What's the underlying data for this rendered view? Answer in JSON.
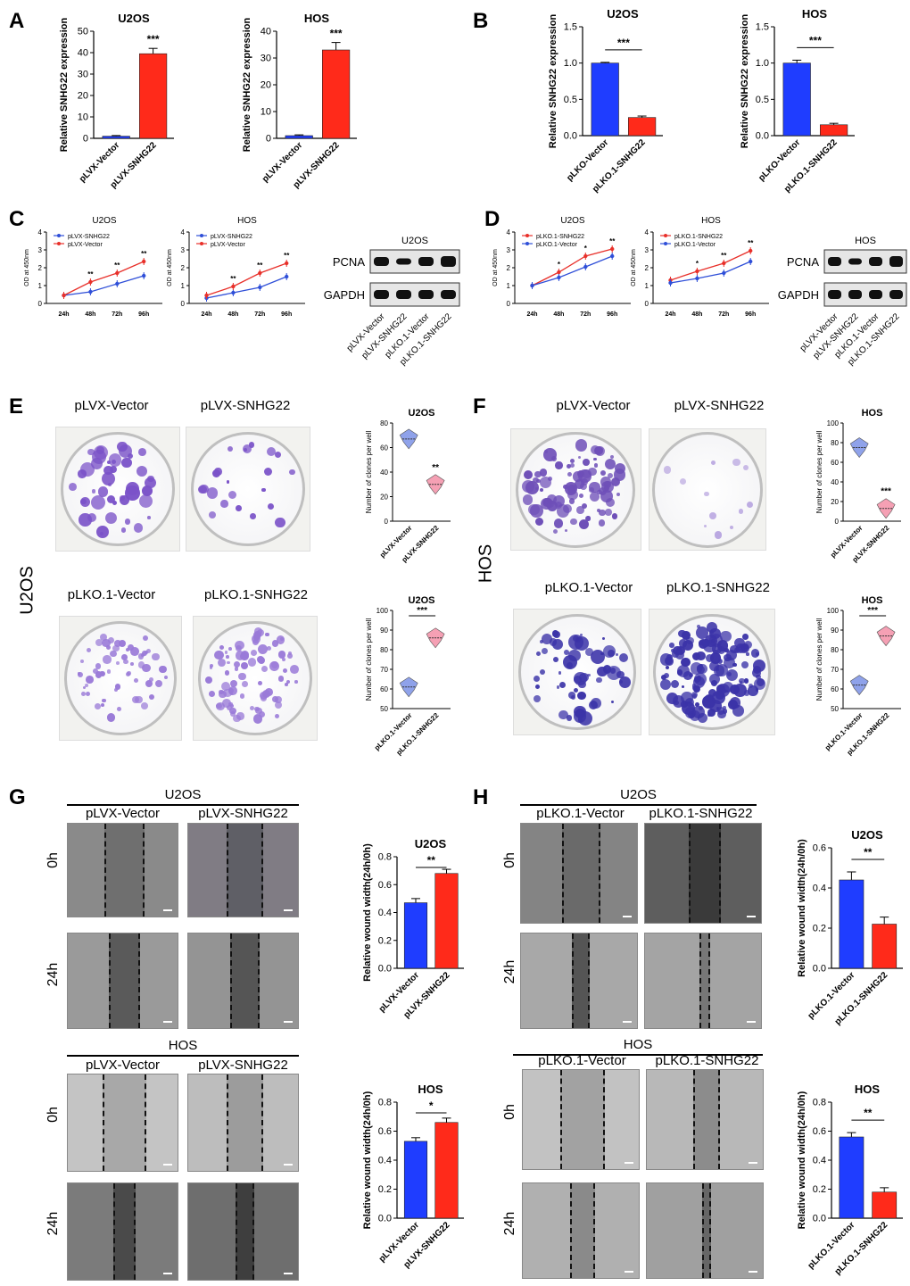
{
  "panels": {
    "A": {
      "letter": "A",
      "charts": [
        {
          "title": "U2OS",
          "ylabel": "Relative SNHG22 expression",
          "categories": [
            "pLVX-Vector",
            "pLVX-SNHG22"
          ],
          "values": [
            1,
            39.5
          ],
          "errors": [
            0.3,
            2.5
          ],
          "yticks": [
            "0",
            "10",
            "20",
            "30",
            "40",
            "50"
          ],
          "ymax": 50,
          "sig": "***"
        },
        {
          "title": "HOS",
          "ylabel": "Relative SNHG22 expression",
          "categories": [
            "pLVX-Vector",
            "pLVX-SNHG22"
          ],
          "values": [
            1,
            33
          ],
          "errors": [
            0.3,
            2.8
          ],
          "yticks": [
            "0",
            "10",
            "20",
            "30",
            "40"
          ],
          "ymax": 40,
          "sig": "***"
        }
      ]
    },
    "B": {
      "letter": "B",
      "charts": [
        {
          "title": "U2OS",
          "ylabel": "Relative SNHG22 expression",
          "categories": [
            "pLKO-Vector",
            "pLKO.1-SNHG22"
          ],
          "values": [
            1.0,
            0.25
          ],
          "errors": [
            0.01,
            0.02
          ],
          "yticks": [
            "0.0",
            "0.5",
            "1.0",
            "1.5"
          ],
          "ymax": 1.5,
          "sig": "***"
        },
        {
          "title": "HOS",
          "ylabel": "Relative SNHG22 expression",
          "categories": [
            "pLKO-Vector",
            "pLKO.1-SNHG22"
          ],
          "values": [
            1.0,
            0.15
          ],
          "errors": [
            0.04,
            0.02
          ],
          "yticks": [
            "0.0",
            "0.5",
            "1.0",
            "1.5"
          ],
          "ymax": 1.5,
          "sig": "***"
        }
      ]
    },
    "C": {
      "letter": "C",
      "lines": [
        {
          "title": "U2OS",
          "ylabel": "OD at 450nm",
          "x": [
            "24h",
            "48h",
            "72h",
            "96h"
          ],
          "yticks": [
            "0",
            "1",
            "2",
            "3",
            "4"
          ],
          "ymax": 4,
          "series": [
            {
              "name": "pLVX-SNHG22",
              "values": [
                0.45,
                0.65,
                1.1,
                1.55
              ],
              "color": "#2f4fd8"
            },
            {
              "name": "pLVX-Vector",
              "values": [
                0.45,
                1.2,
                1.7,
                2.35
              ],
              "color": "#e8302a"
            }
          ],
          "sig": [
            "",
            "**",
            "**",
            "**"
          ]
        },
        {
          "title": "HOS",
          "ylabel": "OD at 450nm",
          "x": [
            "24h",
            "48h",
            "72h",
            "96h"
          ],
          "yticks": [
            "0",
            "1",
            "2",
            "3",
            "4"
          ],
          "ymax": 4,
          "series": [
            {
              "name": "pLVX-SNHG22",
              "values": [
                0.3,
                0.6,
                0.9,
                1.5
              ],
              "color": "#2f4fd8"
            },
            {
              "name": "pLVX-Vector",
              "values": [
                0.45,
                0.95,
                1.7,
                2.25
              ],
              "color": "#e8302a"
            }
          ],
          "sig": [
            "",
            "**",
            "**",
            "**"
          ]
        }
      ],
      "blot": {
        "title": "U2OS",
        "rows": [
          "PCNA",
          "GAPDH"
        ],
        "lanes": [
          "pLVX-Vector",
          "pLVX-SNHG22",
          "pLKO.1-Vector",
          "pLKO.1-SNHG22"
        ]
      }
    },
    "D": {
      "letter": "D",
      "lines": [
        {
          "title": "U2OS",
          "ylabel": "OD at 450nm",
          "x": [
            "24h",
            "48h",
            "72h",
            "96h"
          ],
          "yticks": [
            "0",
            "1",
            "2",
            "3",
            "4"
          ],
          "ymax": 4,
          "series": [
            {
              "name": "pLKO.1-SNHG22",
              "values": [
                1.0,
                1.75,
                2.65,
                3.05
              ],
              "color": "#e8302a"
            },
            {
              "name": "pLKO.1-Vector",
              "values": [
                1.0,
                1.45,
                2.05,
                2.65
              ],
              "color": "#2f4fd8"
            }
          ],
          "sig": [
            "",
            "*",
            "*",
            "**"
          ]
        },
        {
          "title": "HOS",
          "ylabel": "OD at 450nm",
          "x": [
            "24h",
            "48h",
            "72h",
            "96h"
          ],
          "yticks": [
            "0",
            "1",
            "2",
            "3",
            "4"
          ],
          "ymax": 4,
          "series": [
            {
              "name": "pLKO.1-SNHG22",
              "values": [
                1.3,
                1.8,
                2.25,
                2.95
              ],
              "color": "#e8302a"
            },
            {
              "name": "pLKO.1-Vector",
              "values": [
                1.15,
                1.4,
                1.7,
                2.35
              ],
              "color": "#2f4fd8"
            }
          ],
          "sig": [
            "",
            "*",
            "**",
            "**"
          ]
        }
      ],
      "blot": {
        "title": "HOS",
        "rows": [
          "PCNA",
          "GAPDH"
        ],
        "lanes": [
          "pLVX-Vector",
          "pLVX-SNHG22",
          "pLKO.1-Vector",
          "pLKO.1-SNHG22"
        ]
      }
    },
    "E": {
      "letter": "E",
      "side_label": "U2OS",
      "row1": {
        "labels": [
          "pLVX-Vector",
          "pLVX-SNHG22"
        ]
      },
      "row2": {
        "labels": [
          "pLKO.1-Vector",
          "pLKO.1-SNHG22"
        ]
      },
      "violin1": {
        "title": "U2OS",
        "ylabel": "Number of clones per well",
        "categories": [
          "pLVX-Vector",
          "pLVX-SNHG22"
        ],
        "medians": [
          67,
          30
        ],
        "yticks": [
          "0",
          "20",
          "40",
          "60",
          "80"
        ],
        "ymin": 0,
        "ymax": 80,
        "sig": "**",
        "bar": false
      },
      "violin2": {
        "title": "U2OS",
        "ylabel": "Number of clones per well",
        "categories": [
          "pLKO.1-Vector",
          "pLKO.1-SNHG22"
        ],
        "medians": [
          61,
          86
        ],
        "yticks": [
          "50",
          "60",
          "70",
          "80",
          "90",
          "100"
        ],
        "ymin": 50,
        "ymax": 100,
        "sig": "***",
        "bar": true
      }
    },
    "F": {
      "letter": "F",
      "side_label": "HOS",
      "row1": {
        "labels": [
          "pLVX-Vector",
          "pLVX-SNHG22"
        ]
      },
      "row2": {
        "labels": [
          "pLKO.1-Vector",
          "pLKO.1-SNHG22"
        ]
      },
      "violin1": {
        "title": "HOS",
        "ylabel": "Number of clones per well",
        "categories": [
          "pLVX-Vector",
          "pLVX-SNHG22"
        ],
        "medians": [
          75,
          13
        ],
        "yticks": [
          "0",
          "20",
          "40",
          "60",
          "80",
          "100"
        ],
        "ymin": 0,
        "ymax": 100,
        "sig": "***",
        "bar": false
      },
      "violin2": {
        "title": "HOS",
        "ylabel": "Number of clones per well",
        "categories": [
          "pLKO.1-Vector",
          "pLKO.1-SNHG22"
        ],
        "medians": [
          62,
          87
        ],
        "yticks": [
          "50",
          "60",
          "70",
          "80",
          "90",
          "100"
        ],
        "ymin": 50,
        "ymax": 100,
        "sig": "***",
        "bar": true
      }
    },
    "G": {
      "letter": "G",
      "top": {
        "cell": "U2OS",
        "labels": [
          "pLVX-Vector",
          "pLVX-SNHG22"
        ],
        "times": [
          "0h",
          "24h"
        ]
      },
      "bottom": {
        "cell": "HOS",
        "labels": [
          "pLVX-Vector",
          "pLVX-SNHG22"
        ],
        "times": [
          "0h",
          "24h"
        ]
      },
      "bar1": {
        "title": "U2OS",
        "ylabel": "Relative wound width(24h/0h)",
        "categories": [
          "pLVX-Vector",
          "pLVX-SNHG22"
        ],
        "values": [
          0.47,
          0.68
        ],
        "errors": [
          0.03,
          0.03
        ],
        "yticks": [
          "0.0",
          "0.2",
          "0.4",
          "0.6",
          "0.8"
        ],
        "ymax": 0.8,
        "sig": "**"
      },
      "bar2": {
        "title": "HOS",
        "ylabel": "Relative wound width(24h/0h)",
        "categories": [
          "pLVX-Vector",
          "pLVX-SNHG22"
        ],
        "values": [
          0.53,
          0.66
        ],
        "errors": [
          0.025,
          0.03
        ],
        "yticks": [
          "0.0",
          "0.2",
          "0.4",
          "0.6",
          "0.8"
        ],
        "ymax": 0.8,
        "sig": "*"
      }
    },
    "H": {
      "letter": "H",
      "top": {
        "cell": "U2OS",
        "labels": [
          "pLKO.1-Vector",
          "pLKO.1-SNHG22"
        ],
        "times": [
          "0h",
          "24h"
        ]
      },
      "bottom": {
        "cell": "HOS",
        "labels": [
          "pLKO.1-Vector",
          "pLKO.1-SNHG22"
        ],
        "times": [
          "0h",
          "24h"
        ]
      },
      "bar1": {
        "title": "U2OS",
        "ylabel": "Relative wound width(24h/0h)",
        "categories": [
          "pLKO.1-Vector",
          "pLKO.1-SNHG22"
        ],
        "values": [
          0.44,
          0.22
        ],
        "errors": [
          0.04,
          0.035
        ],
        "yticks": [
          "0.0",
          "0.2",
          "0.4",
          "0.6"
        ],
        "ymax": 0.6,
        "sig": "**"
      },
      "bar2": {
        "title": "HOS",
        "ylabel": "Relative wound width(24h/0h)",
        "categories": [
          "pLKO.1-Vector",
          "pLKO.1-SNHG22"
        ],
        "values": [
          0.56,
          0.18
        ],
        "errors": [
          0.03,
          0.03
        ],
        "yticks": [
          "0.0",
          "0.2",
          "0.4",
          "0.6",
          "0.8"
        ],
        "ymax": 0.8,
        "sig": "**"
      }
    }
  },
  "colors": {
    "blue": "#1f3dff",
    "red": "#ff2a1a",
    "violet_blue": "#8fa2ea",
    "violet_pink": "#f5a0b4",
    "colony": "#7a52c8"
  },
  "chart_data": [
    {
      "type": "bar",
      "title": "U2OS",
      "ylabel": "Relative SNHG22 expression",
      "categories": [
        "pLVX-Vector",
        "pLVX-SNHG22"
      ],
      "values": [
        1,
        39.5
      ],
      "ylim": [
        0,
        50
      ]
    },
    {
      "type": "bar",
      "title": "HOS",
      "ylabel": "Relative SNHG22 expression",
      "categories": [
        "pLVX-Vector",
        "pLVX-SNHG22"
      ],
      "values": [
        1,
        33
      ],
      "ylim": [
        0,
        40
      ]
    },
    {
      "type": "bar",
      "title": "U2OS",
      "ylabel": "Relative SNHG22 expression",
      "categories": [
        "pLKO-Vector",
        "pLKO.1-SNHG22"
      ],
      "values": [
        1.0,
        0.25
      ],
      "ylim": [
        0,
        1.5
      ]
    },
    {
      "type": "bar",
      "title": "HOS",
      "ylabel": "Relative SNHG22 expression",
      "categories": [
        "pLKO-Vector",
        "pLKO.1-SNHG22"
      ],
      "values": [
        1.0,
        0.15
      ],
      "ylim": [
        0,
        1.5
      ]
    },
    {
      "type": "line",
      "title": "U2OS",
      "ylabel": "OD at 450nm",
      "x": [
        "24h",
        "48h",
        "72h",
        "96h"
      ],
      "series": [
        {
          "name": "pLVX-SNHG22",
          "values": [
            0.45,
            0.65,
            1.1,
            1.55
          ]
        },
        {
          "name": "pLVX-Vector",
          "values": [
            0.45,
            1.2,
            1.7,
            2.35
          ]
        }
      ],
      "ylim": [
        0,
        4
      ]
    },
    {
      "type": "line",
      "title": "HOS",
      "ylabel": "OD at 450nm",
      "x": [
        "24h",
        "48h",
        "72h",
        "96h"
      ],
      "series": [
        {
          "name": "pLVX-SNHG22",
          "values": [
            0.3,
            0.6,
            0.9,
            1.5
          ]
        },
        {
          "name": "pLVX-Vector",
          "values": [
            0.45,
            0.95,
            1.7,
            2.25
          ]
        }
      ],
      "ylim": [
        0,
        4
      ]
    },
    {
      "type": "line",
      "title": "U2OS",
      "ylabel": "OD at 450nm",
      "x": [
        "24h",
        "48h",
        "72h",
        "96h"
      ],
      "series": [
        {
          "name": "pLKO.1-SNHG22",
          "values": [
            1.0,
            1.75,
            2.65,
            3.05
          ]
        },
        {
          "name": "pLKO.1-Vector",
          "values": [
            1.0,
            1.45,
            2.05,
            2.65
          ]
        }
      ],
      "ylim": [
        0,
        4
      ]
    },
    {
      "type": "line",
      "title": "HOS",
      "ylabel": "OD at 450nm",
      "x": [
        "24h",
        "48h",
        "72h",
        "96h"
      ],
      "series": [
        {
          "name": "pLKO.1-SNHG22",
          "values": [
            1.3,
            1.8,
            2.25,
            2.95
          ]
        },
        {
          "name": "pLKO.1-Vector",
          "values": [
            1.15,
            1.4,
            1.7,
            2.35
          ]
        }
      ],
      "ylim": [
        0,
        4
      ]
    },
    {
      "type": "bar",
      "title": "U2OS",
      "ylabel": "Relative wound width(24h/0h)",
      "categories": [
        "pLVX-Vector",
        "pLVX-SNHG22"
      ],
      "values": [
        0.47,
        0.68
      ],
      "ylim": [
        0,
        0.8
      ]
    },
    {
      "type": "bar",
      "title": "HOS",
      "ylabel": "Relative wound width(24h/0h)",
      "categories": [
        "pLVX-Vector",
        "pLVX-SNHG22"
      ],
      "values": [
        0.53,
        0.66
      ],
      "ylim": [
        0,
        0.8
      ]
    },
    {
      "type": "bar",
      "title": "U2OS",
      "ylabel": "Relative wound width(24h/0h)",
      "categories": [
        "pLKO.1-Vector",
        "pLKO.1-SNHG22"
      ],
      "values": [
        0.44,
        0.22
      ],
      "ylim": [
        0,
        0.6
      ]
    },
    {
      "type": "bar",
      "title": "HOS",
      "ylabel": "Relative wound width(24h/0h)",
      "categories": [
        "pLKO.1-Vector",
        "pLKO.1-SNHG22"
      ],
      "values": [
        0.56,
        0.18
      ],
      "ylim": [
        0,
        0.8
      ]
    }
  ]
}
